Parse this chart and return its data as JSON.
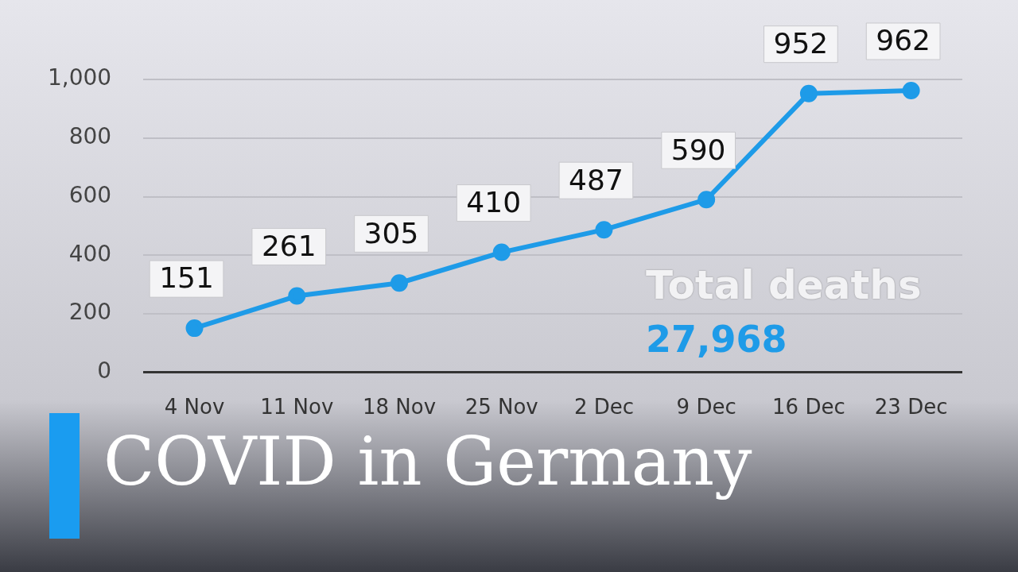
{
  "chart_data": {
    "type": "line",
    "title": "COVID in Germany",
    "categories": [
      "4 Nov",
      "11 Nov",
      "18 Nov",
      "25 Nov",
      "2 Dec",
      "9 Dec",
      "16 Dec",
      "23 Dec"
    ],
    "series": [
      {
        "color": "#1e9be8",
        "values": [
          151,
          261,
          305,
          410,
          487,
          590,
          952,
          962
        ]
      }
    ],
    "ylim": [
      0,
      1000
    ],
    "yticks": [
      0,
      200,
      400,
      600,
      800,
      {
        "value": 1000,
        "label": "1,000"
      }
    ],
    "grid": "y",
    "marker": "circle",
    "line_style": "solid",
    "data_labels": true,
    "annotations": [
      "Total deaths",
      "27,968"
    ]
  }
}
